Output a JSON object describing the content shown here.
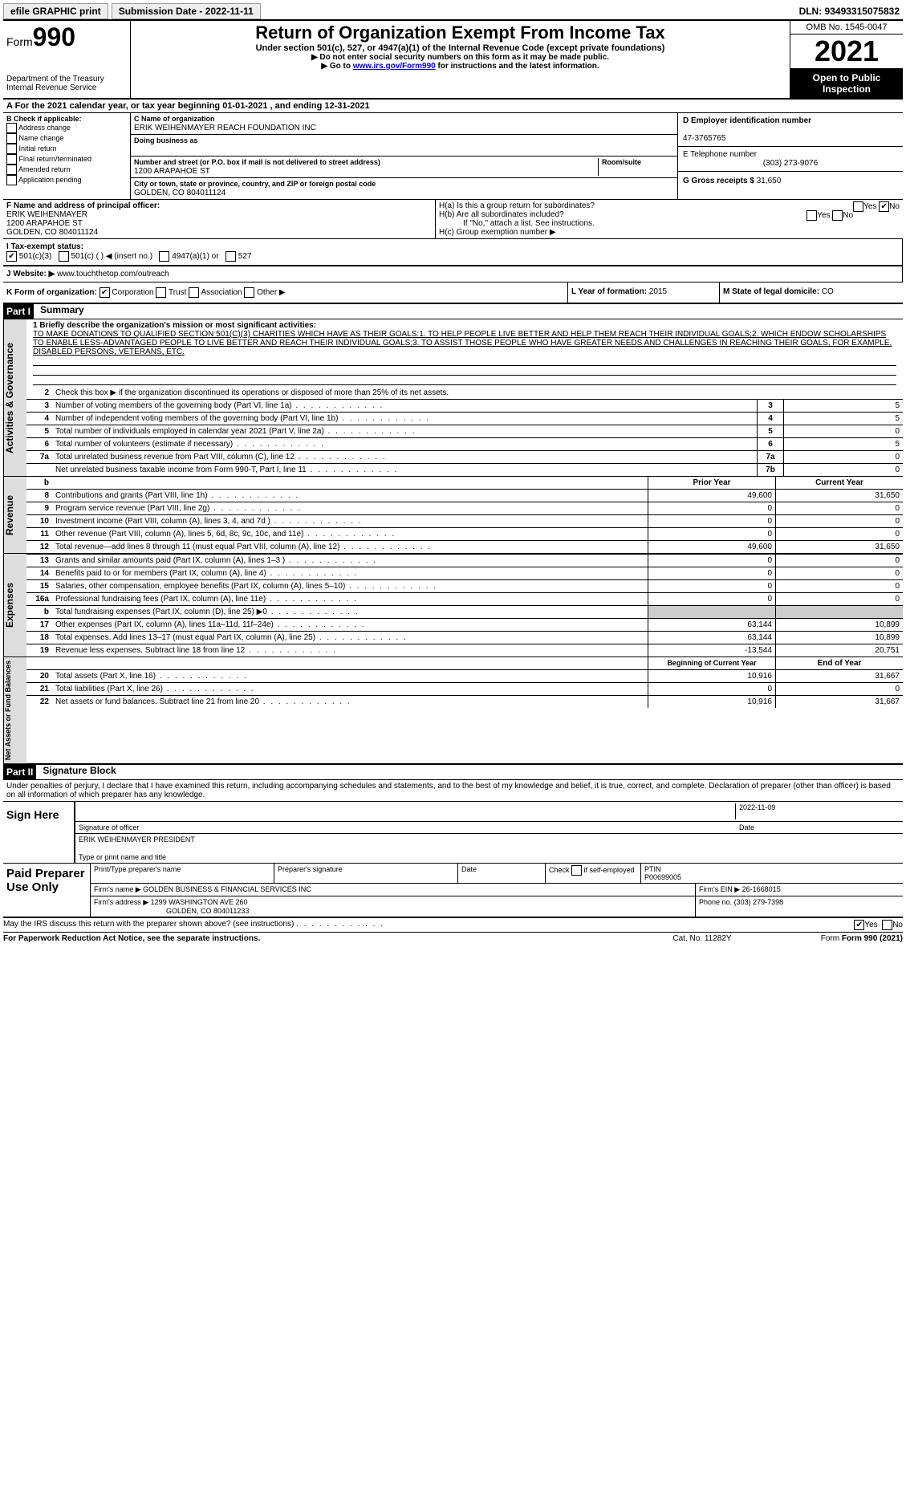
{
  "topbar": {
    "efile": "efile GRAPHIC print",
    "submission": "Submission Date - 2022-11-11",
    "dln": "DLN: 93493315075832"
  },
  "header": {
    "form_label": "Form",
    "form_number": "990",
    "dept": "Department of the Treasury",
    "irs": "Internal Revenue Service",
    "title": "Return of Organization Exempt From Income Tax",
    "sub1": "Under section 501(c), 527, or 4947(a)(1) of the Internal Revenue Code (except private foundations)",
    "sub2": "▶ Do not enter social security numbers on this form as it may be made public.",
    "sub3_pre": "▶ Go to ",
    "sub3_link": "www.irs.gov/Form990",
    "sub3_post": " for instructions and the latest information.",
    "omb": "OMB No. 1545-0047",
    "year": "2021",
    "open": "Open to Public Inspection"
  },
  "line_a": "A   For the 2021 calendar year, or tax year beginning 01-01-2021     , and ending 12-31-2021",
  "box_b": {
    "title": "B Check if applicable:",
    "items": [
      "Address change",
      "Name change",
      "Initial return",
      "Final return/terminated",
      "Amended return",
      "Application pending"
    ]
  },
  "box_c": {
    "name_label": "C Name of organization",
    "name": "ERIK WEIHENMAYER REACH FOUNDATION INC",
    "dba_label": "Doing business as",
    "addr_label": "Number and street (or P.O. box if mail is not delivered to street address)",
    "room_label": "Room/suite",
    "addr": "1200 ARAPAHOE ST",
    "city_label": "City or town, state or province, country, and ZIP or foreign postal code",
    "city": "GOLDEN, CO  804011124"
  },
  "box_d": {
    "label": "D Employer identification number",
    "val": "47-3765765"
  },
  "box_e": {
    "label": "E Telephone number",
    "val": "(303) 273-9076"
  },
  "box_g": {
    "label": "G Gross receipts $",
    "val": "31,650"
  },
  "box_f": {
    "label": "F  Name and address of principal officer:",
    "l1": "ERIK WEIHENMAYER",
    "l2": "1200 ARAPAHOE ST",
    "l3": "GOLDEN, CO  804011124"
  },
  "box_h": {
    "ha": "H(a)  Is this a group return for subordinates?",
    "hb": "H(b)  Are all subordinates included?",
    "hb_note": "If \"No,\" attach a list. See instructions.",
    "hc": "H(c)  Group exemption number ▶",
    "yes": "Yes",
    "no": "No"
  },
  "box_i": {
    "label": "I   Tax-exempt status:",
    "o1": "501(c)(3)",
    "o2": "501(c) (  ) ◀ (insert no.)",
    "o3": "4947(a)(1) or",
    "o4": "527"
  },
  "box_j": {
    "label": "J   Website: ▶",
    "val": "www.touchthetop.com/outreach"
  },
  "box_k": {
    "label": "K Form of organization:",
    "o1": "Corporation",
    "o2": "Trust",
    "o3": "Association",
    "o4": "Other ▶"
  },
  "box_l": {
    "label": "L Year of formation:",
    "val": "2015"
  },
  "box_m": {
    "label": "M State of legal domicile:",
    "val": "CO"
  },
  "part1": {
    "num": "Part I",
    "title": "Summary"
  },
  "summary": {
    "l1_label": "1  Briefly describe the organization's mission or most significant activities:",
    "l1_text": "TO MAKE DONATIONS TO QUALIFIED SECTION 501(C)(3) CHARITIES WHICH HAVE AS THEIR GOALS:1. TO HELP PEOPLE LIVE BETTER AND HELP THEM REACH THEIR INDIVIDUAL GOALS;2. WHICH ENDOW SCHOLARSHIPS TO ENABLE LESS-ADVANTAGED PEOPLE TO LIVE BETTER AND REACH THEIR INDIVIDUAL GOALS;3. TO ASSIST THOSE PEOPLE WHO HAVE GREATER NEEDS AND CHALLENGES IN REACHING THEIR GOALS, FOR EXAMPLE, DISABLED PERSONS, VETERANS, ETC.",
    "l2": "Check this box ▶       if the organization discontinued its operations or disposed of more than 25% of its net assets.",
    "rows": [
      {
        "n": "3",
        "desc": "Number of voting members of the governing body (Part VI, line 1a)",
        "box": "3",
        "val": "5"
      },
      {
        "n": "4",
        "desc": "Number of independent voting members of the governing body (Part VI, line 1b)",
        "box": "4",
        "val": "5"
      },
      {
        "n": "5",
        "desc": "Total number of individuals employed in calendar year 2021 (Part V, line 2a)",
        "box": "5",
        "val": "0"
      },
      {
        "n": "6",
        "desc": "Total number of volunteers (estimate if necessary)",
        "box": "6",
        "val": "5"
      },
      {
        "n": "7a",
        "desc": "Total unrelated business revenue from Part VIII, column (C), line 12",
        "box": "7a",
        "val": "0"
      },
      {
        "n": "",
        "desc": "Net unrelated business taxable income from Form 990-T, Part I, line 11",
        "box": "7b",
        "val": "0"
      }
    ]
  },
  "headers2": {
    "prior": "Prior Year",
    "curr": "Current Year"
  },
  "revenue": {
    "side": "Revenue",
    "rows": [
      {
        "n": "8",
        "desc": "Contributions and grants (Part VIII, line 1h)",
        "p": "49,600",
        "c": "31,650"
      },
      {
        "n": "9",
        "desc": "Program service revenue (Part VIII, line 2g)",
        "p": "0",
        "c": "0"
      },
      {
        "n": "10",
        "desc": "Investment income (Part VIII, column (A), lines 3, 4, and 7d )",
        "p": "0",
        "c": "0"
      },
      {
        "n": "11",
        "desc": "Other revenue (Part VIII, column (A), lines 5, 6d, 8c, 9c, 10c, and 11e)",
        "p": "0",
        "c": "0"
      },
      {
        "n": "12",
        "desc": "Total revenue—add lines 8 through 11 (must equal Part VIII, column (A), line 12)",
        "p": "49,600",
        "c": "31,650"
      }
    ]
  },
  "expenses": {
    "side": "Expenses",
    "rows": [
      {
        "n": "13",
        "desc": "Grants and similar amounts paid (Part IX, column (A), lines 1–3 )",
        "p": "0",
        "c": "0"
      },
      {
        "n": "14",
        "desc": "Benefits paid to or for members (Part IX, column (A), line 4)",
        "p": "0",
        "c": "0"
      },
      {
        "n": "15",
        "desc": "Salaries, other compensation, employee benefits (Part IX, column (A), lines 5–10)",
        "p": "0",
        "c": "0"
      },
      {
        "n": "16a",
        "desc": "Professional fundraising fees (Part IX, column (A), line 11e)",
        "p": "0",
        "c": "0"
      },
      {
        "n": "b",
        "desc": "Total fundraising expenses (Part IX, column (D), line 25) ▶0",
        "p": "",
        "c": "",
        "grey": true
      },
      {
        "n": "17",
        "desc": "Other expenses (Part IX, column (A), lines 11a–11d, 11f–24e)",
        "p": "63,144",
        "c": "10,899"
      },
      {
        "n": "18",
        "desc": "Total expenses. Add lines 13–17 (must equal Part IX, column (A), line 25)",
        "p": "63,144",
        "c": "10,899"
      },
      {
        "n": "19",
        "desc": "Revenue less expenses. Subtract line 18 from line 12",
        "p": "-13,544",
        "c": "20,751"
      }
    ]
  },
  "headers3": {
    "prior": "Beginning of Current Year",
    "curr": "End of Year"
  },
  "netassets": {
    "side": "Net Assets or Fund Balances",
    "rows": [
      {
        "n": "20",
        "desc": "Total assets (Part X, line 16)",
        "p": "10,916",
        "c": "31,667"
      },
      {
        "n": "21",
        "desc": "Total liabilities (Part X, line 26)",
        "p": "0",
        "c": "0"
      },
      {
        "n": "22",
        "desc": "Net assets or fund balances. Subtract line 21 from line 20",
        "p": "10,916",
        "c": "31,667"
      }
    ]
  },
  "side_ag": "Activities & Governance",
  "part2": {
    "num": "Part II",
    "title": "Signature Block"
  },
  "sig": {
    "penalties": "Under penalties of perjury, I declare that I have examined this return, including accompanying schedules and statements, and to the best of my knowledge and belief, it is true, correct, and complete. Declaration of preparer (other than officer) is based on all information of which preparer has any knowledge.",
    "sign_here": "Sign Here",
    "sig_officer": "Signature of officer",
    "date": "Date",
    "date_val": "2022-11-09",
    "name": "ERIK WEIHENMAYER  PRESIDENT",
    "name_label": "Type or print name and title"
  },
  "prep": {
    "title": "Paid Preparer Use Only",
    "h1": "Print/Type preparer's name",
    "h2": "Preparer's signature",
    "h3": "Date",
    "h4_pre": "Check",
    "h4_post": "if self-employed",
    "ptin_label": "PTIN",
    "ptin": "P00699005",
    "firm_label": "Firm's name   ▶",
    "firm": "GOLDEN BUSINESS & FINANCIAL SERVICES INC",
    "ein_label": "Firm's EIN ▶",
    "ein": "26-1668015",
    "addr_label": "Firm's address ▶",
    "addr1": "1299 WASHINGTON AVE 260",
    "addr2": "GOLDEN, CO  804011233",
    "phone_label": "Phone no.",
    "phone": "(303) 279-7398"
  },
  "footer": {
    "discuss": "May the IRS discuss this return with the preparer shown above? (see instructions)",
    "yes": "Yes",
    "no": "No",
    "paperwork": "For Paperwork Reduction Act Notice, see the separate instructions.",
    "cat": "Cat. No. 11282Y",
    "form": "Form 990 (2021)"
  }
}
